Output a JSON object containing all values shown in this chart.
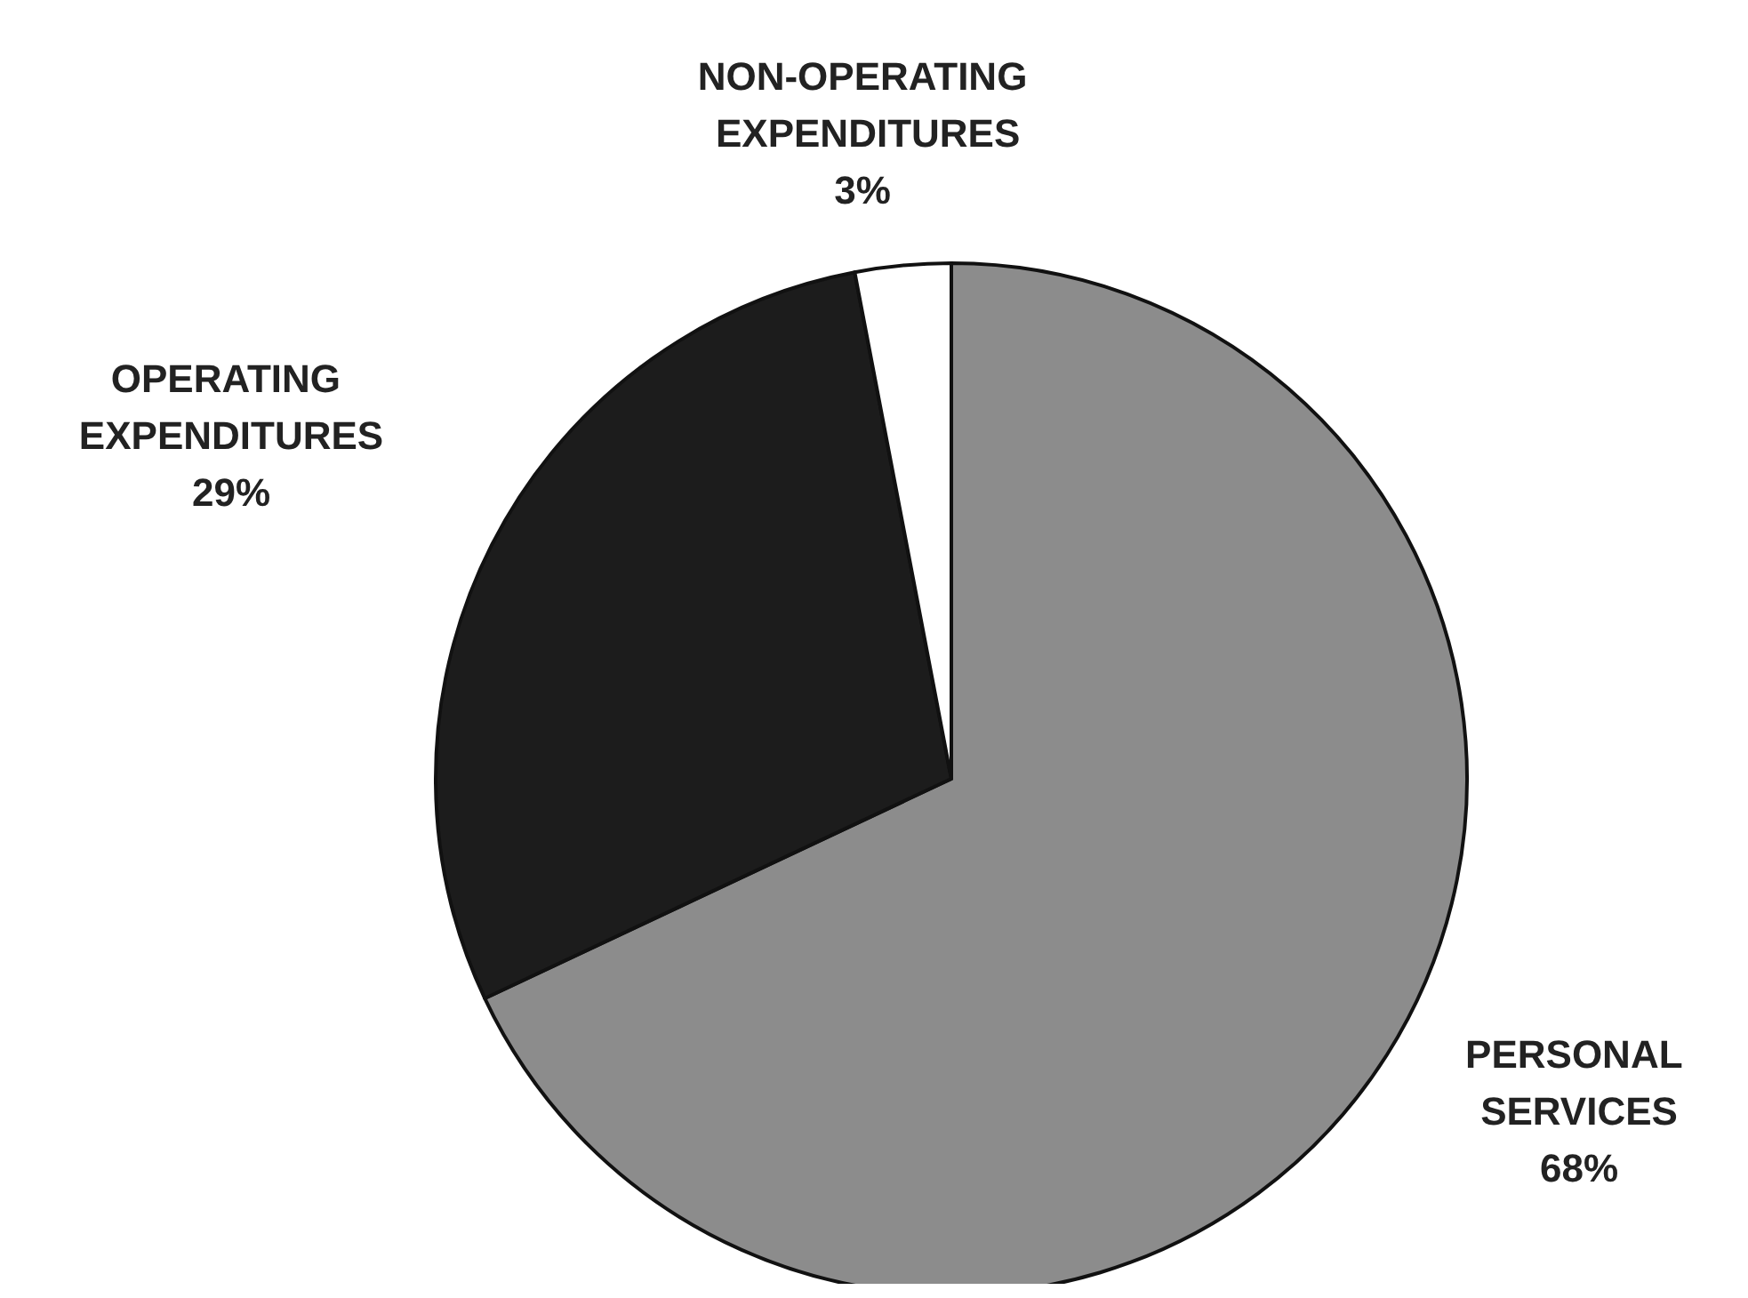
{
  "chart_data": {
    "type": "pie",
    "categories": [
      "PERSONAL SERVICES",
      "OPERATING EXPENDITURES",
      "NON-OPERATING EXPENDITURES"
    ],
    "values": [
      68,
      29,
      3
    ],
    "colors": [
      "#8c8c8c",
      "#1c1c1c",
      "#ffffff"
    ],
    "value_labels": [
      "68%",
      "29%",
      "3%"
    ]
  }
}
